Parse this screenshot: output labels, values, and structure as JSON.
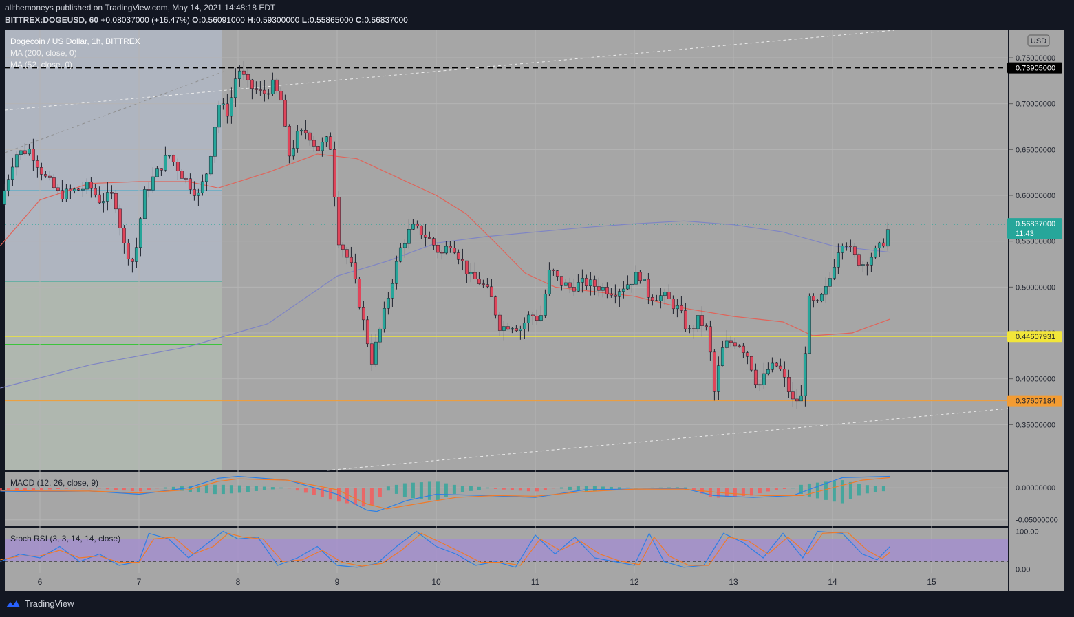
{
  "header": {
    "publisher": "allthemoneys published on TradingView.com, May 14, 2021 14:48:18 EDT",
    "symbol": "BITTREX:DOGEUSD, 60",
    "change": "+0.08037000 (+16.47%)",
    "o_label": "O:",
    "o_value": "0.56091000",
    "h_label": "H:",
    "h_value": "0.59300000",
    "l_label": "L:",
    "l_value": "0.55865000",
    "c_label": "C:",
    "c_value": "0.56837000"
  },
  "legend": {
    "title": "Dogecoin / US Dollar, 1h, BITTREX",
    "ma200": "MA (200, close, 0)",
    "ma52": "MA (52, close, 0)",
    "macd": "MACD (12, 26, close, 9)",
    "stoch": "Stoch RSI (3, 3, 14, 14, close)"
  },
  "currency_badge": "USD",
  "countdown": "11:43",
  "footer_brand": "TradingView",
  "colors": {
    "background": "#131722",
    "pane": "#a6a6a6",
    "up": "#26a69a",
    "down": "#e0455a",
    "ma200": "#7e84c4",
    "ma52": "#e0645a",
    "resistance_high": "#000000",
    "support_yellow": "#f2e63a",
    "support_orange": "#f39c33",
    "macd_line": "#2b7fe6",
    "signal_line": "#f07a28",
    "stoch_band": "#a48fd0"
  },
  "chart_data": {
    "type": "candlestick",
    "symbol": "BITTREX:DOGEUSD",
    "timeframe": "1h",
    "x_ticks": [
      "6",
      "7",
      "8",
      "9",
      "10",
      "11",
      "12",
      "13",
      "14",
      "15"
    ],
    "y_ticks": [
      "0.75000000",
      "0.70000000",
      "0.65000000",
      "0.60000000",
      "0.55000000",
      "0.50000000",
      "0.45000000",
      "0.40000000",
      "0.35000000"
    ],
    "ylim": [
      0.3,
      0.78
    ],
    "levels": [
      {
        "value": 0.73905,
        "label": "0.73905000",
        "color": "#000000",
        "style": "dashed"
      },
      {
        "value": 0.44607931,
        "label": "0.44607931",
        "color": "#f2e63a",
        "style": "solid"
      },
      {
        "value": 0.37607184,
        "label": "0.37607184",
        "color": "#f39c33",
        "style": "solid"
      },
      {
        "value": 0.56837,
        "label": "0.56837000",
        "color": "#26a69a",
        "style": "dotted"
      }
    ],
    "price_path": [
      [
        5.6,
        0.59
      ],
      [
        5.75,
        0.645
      ],
      [
        5.9,
        0.65
      ],
      [
        6.05,
        0.62
      ],
      [
        6.2,
        0.6
      ],
      [
        6.35,
        0.605
      ],
      [
        6.5,
        0.61
      ],
      [
        6.6,
        0.595
      ],
      [
        6.75,
        0.6
      ],
      [
        6.85,
        0.545
      ],
      [
        6.95,
        0.525
      ],
      [
        7.05,
        0.6
      ],
      [
        7.15,
        0.62
      ],
      [
        7.3,
        0.645
      ],
      [
        7.45,
        0.62
      ],
      [
        7.6,
        0.6
      ],
      [
        7.7,
        0.63
      ],
      [
        7.8,
        0.7
      ],
      [
        7.9,
        0.69
      ],
      [
        8.0,
        0.74
      ],
      [
        8.1,
        0.72
      ],
      [
        8.25,
        0.71
      ],
      [
        8.35,
        0.72
      ],
      [
        8.45,
        0.7
      ],
      [
        8.5,
        0.64
      ],
      [
        8.6,
        0.665
      ],
      [
        8.7,
        0.67
      ],
      [
        8.8,
        0.65
      ],
      [
        8.9,
        0.66
      ],
      [
        8.95,
        0.65
      ],
      [
        9.0,
        0.555
      ],
      [
        9.05,
        0.545
      ],
      [
        9.15,
        0.52
      ],
      [
        9.25,
        0.47
      ],
      [
        9.35,
        0.42
      ],
      [
        9.45,
        0.46
      ],
      [
        9.55,
        0.505
      ],
      [
        9.65,
        0.545
      ],
      [
        9.75,
        0.565
      ],
      [
        9.85,
        0.56
      ],
      [
        9.95,
        0.55
      ],
      [
        10.05,
        0.535
      ],
      [
        10.15,
        0.55
      ],
      [
        10.25,
        0.53
      ],
      [
        10.35,
        0.51
      ],
      [
        10.45,
        0.505
      ],
      [
        10.55,
        0.49
      ],
      [
        10.65,
        0.455
      ],
      [
        10.75,
        0.46
      ],
      [
        10.85,
        0.455
      ],
      [
        10.95,
        0.47
      ],
      [
        11.05,
        0.465
      ],
      [
        11.15,
        0.52
      ],
      [
        11.25,
        0.505
      ],
      [
        11.35,
        0.5
      ],
      [
        11.5,
        0.505
      ],
      [
        11.65,
        0.5
      ],
      [
        11.8,
        0.495
      ],
      [
        11.95,
        0.505
      ],
      [
        12.05,
        0.515
      ],
      [
        12.15,
        0.49
      ],
      [
        12.3,
        0.49
      ],
      [
        12.45,
        0.475
      ],
      [
        12.55,
        0.45
      ],
      [
        12.65,
        0.465
      ],
      [
        12.75,
        0.45
      ],
      [
        12.8,
        0.38
      ],
      [
        12.88,
        0.43
      ],
      [
        12.95,
        0.44
      ],
      [
        13.05,
        0.44
      ],
      [
        13.15,
        0.425
      ],
      [
        13.25,
        0.39
      ],
      [
        13.35,
        0.41
      ],
      [
        13.45,
        0.415
      ],
      [
        13.55,
        0.39
      ],
      [
        13.6,
        0.375
      ],
      [
        13.7,
        0.38
      ],
      [
        13.75,
        0.485
      ],
      [
        13.85,
        0.48
      ],
      [
        13.95,
        0.5
      ],
      [
        14.05,
        0.54
      ],
      [
        14.12,
        0.555
      ],
      [
        14.2,
        0.535
      ],
      [
        14.3,
        0.525
      ],
      [
        14.4,
        0.535
      ],
      [
        14.5,
        0.545
      ],
      [
        14.58,
        0.568
      ]
    ],
    "ma200": [
      [
        5.6,
        0.39
      ],
      [
        6.5,
        0.415
      ],
      [
        7.5,
        0.435
      ],
      [
        8.3,
        0.46
      ],
      [
        9.0,
        0.512
      ],
      [
        9.5,
        0.528
      ],
      [
        10.0,
        0.548
      ],
      [
        10.5,
        0.555
      ],
      [
        11.0,
        0.56
      ],
      [
        11.5,
        0.565
      ],
      [
        12.0,
        0.569
      ],
      [
        12.5,
        0.572
      ],
      [
        13.0,
        0.568
      ],
      [
        13.5,
        0.56
      ],
      [
        14.0,
        0.545
      ],
      [
        14.58,
        0.538
      ]
    ],
    "ma52": [
      [
        5.6,
        0.545
      ],
      [
        6.0,
        0.595
      ],
      [
        6.5,
        0.613
      ],
      [
        7.0,
        0.615
      ],
      [
        7.5,
        0.615
      ],
      [
        7.8,
        0.608
      ],
      [
        8.3,
        0.625
      ],
      [
        8.8,
        0.645
      ],
      [
        9.2,
        0.64
      ],
      [
        9.6,
        0.62
      ],
      [
        10.0,
        0.6
      ],
      [
        10.3,
        0.58
      ],
      [
        10.6,
        0.548
      ],
      [
        10.9,
        0.515
      ],
      [
        11.2,
        0.5
      ],
      [
        11.6,
        0.495
      ],
      [
        12.0,
        0.49
      ],
      [
        12.5,
        0.477
      ],
      [
        13.0,
        0.468
      ],
      [
        13.5,
        0.462
      ],
      [
        13.8,
        0.447
      ],
      [
        14.2,
        0.45
      ],
      [
        14.58,
        0.465
      ]
    ],
    "macd": {
      "y_ticks": [
        "0.00000000",
        "-0.05000000"
      ],
      "ylim": [
        -0.06,
        0.025
      ],
      "macd_line": [
        [
          5.6,
          -0.005
        ],
        [
          6.0,
          -0.006
        ],
        [
          6.5,
          -0.005
        ],
        [
          7.0,
          -0.01
        ],
        [
          7.5,
          0.0
        ],
        [
          7.8,
          0.015
        ],
        [
          8.0,
          0.018
        ],
        [
          8.5,
          0.012
        ],
        [
          9.0,
          -0.01
        ],
        [
          9.3,
          -0.035
        ],
        [
          9.4,
          -0.037
        ],
        [
          9.7,
          -0.02
        ],
        [
          10.0,
          -0.01
        ],
        [
          10.5,
          -0.012
        ],
        [
          11.0,
          -0.015
        ],
        [
          11.5,
          -0.003
        ],
        [
          12.0,
          -0.002
        ],
        [
          12.5,
          -0.001
        ],
        [
          12.8,
          -0.012
        ],
        [
          13.2,
          -0.015
        ],
        [
          13.6,
          -0.012
        ],
        [
          13.9,
          0.005
        ],
        [
          14.1,
          0.016
        ],
        [
          14.58,
          0.018
        ]
      ],
      "signal_line": [
        [
          5.6,
          -0.004
        ],
        [
          6.0,
          -0.005
        ],
        [
          6.5,
          -0.005
        ],
        [
          7.0,
          -0.008
        ],
        [
          7.5,
          -0.003
        ],
        [
          7.8,
          0.01
        ],
        [
          8.0,
          0.014
        ],
        [
          8.5,
          0.012
        ],
        [
          9.0,
          -0.003
        ],
        [
          9.3,
          -0.025
        ],
        [
          9.5,
          -0.033
        ],
        [
          9.8,
          -0.025
        ],
        [
          10.2,
          -0.015
        ],
        [
          10.6,
          -0.012
        ],
        [
          11.0,
          -0.013
        ],
        [
          11.5,
          -0.006
        ],
        [
          12.0,
          -0.002
        ],
        [
          12.5,
          -0.002
        ],
        [
          12.9,
          -0.008
        ],
        [
          13.3,
          -0.012
        ],
        [
          13.7,
          -0.012
        ],
        [
          14.0,
          0.0
        ],
        [
          14.3,
          0.012
        ],
        [
          14.58,
          0.016
        ]
      ]
    },
    "stoch_rsi": {
      "y_ticks": [
        "100.00",
        "0.00"
      ],
      "ylim": [
        -10,
        110
      ],
      "bands": [
        80,
        20
      ],
      "k_line": [
        [
          5.6,
          20
        ],
        [
          5.8,
          40
        ],
        [
          6.0,
          30
        ],
        [
          6.2,
          60
        ],
        [
          6.4,
          20
        ],
        [
          6.6,
          40
        ],
        [
          6.8,
          10
        ],
        [
          7.0,
          20
        ],
        [
          7.1,
          95
        ],
        [
          7.3,
          80
        ],
        [
          7.5,
          30
        ],
        [
          7.7,
          70
        ],
        [
          7.85,
          100
        ],
        [
          8.0,
          80
        ],
        [
          8.2,
          85
        ],
        [
          8.4,
          10
        ],
        [
          8.6,
          30
        ],
        [
          8.8,
          60
        ],
        [
          9.0,
          10
        ],
        [
          9.2,
          5
        ],
        [
          9.4,
          15
        ],
        [
          9.6,
          60
        ],
        [
          9.8,
          100
        ],
        [
          10.0,
          60
        ],
        [
          10.2,
          40
        ],
        [
          10.4,
          10
        ],
        [
          10.6,
          20
        ],
        [
          10.8,
          5
        ],
        [
          11.0,
          90
        ],
        [
          11.2,
          40
        ],
        [
          11.4,
          85
        ],
        [
          11.6,
          30
        ],
        [
          11.8,
          20
        ],
        [
          12.0,
          10
        ],
        [
          12.15,
          95
        ],
        [
          12.3,
          20
        ],
        [
          12.5,
          5
        ],
        [
          12.7,
          10
        ],
        [
          12.9,
          95
        ],
        [
          13.1,
          70
        ],
        [
          13.3,
          30
        ],
        [
          13.5,
          95
        ],
        [
          13.7,
          30
        ],
        [
          13.85,
          100
        ],
        [
          14.1,
          95
        ],
        [
          14.3,
          40
        ],
        [
          14.45,
          25
        ],
        [
          14.58,
          60
        ]
      ],
      "d_line": [
        [
          5.6,
          25
        ],
        [
          5.8,
          35
        ],
        [
          6.0,
          35
        ],
        [
          6.2,
          50
        ],
        [
          6.4,
          30
        ],
        [
          6.6,
          35
        ],
        [
          6.8,
          18
        ],
        [
          7.0,
          18
        ],
        [
          7.15,
          80
        ],
        [
          7.35,
          85
        ],
        [
          7.55,
          40
        ],
        [
          7.75,
          60
        ],
        [
          7.9,
          95
        ],
        [
          8.05,
          85
        ],
        [
          8.25,
          80
        ],
        [
          8.45,
          20
        ],
        [
          8.65,
          25
        ],
        [
          8.85,
          50
        ],
        [
          9.05,
          18
        ],
        [
          9.25,
          8
        ],
        [
          9.45,
          15
        ],
        [
          9.65,
          50
        ],
        [
          9.85,
          95
        ],
        [
          10.05,
          70
        ],
        [
          10.25,
          45
        ],
        [
          10.45,
          18
        ],
        [
          10.65,
          18
        ],
        [
          10.85,
          10
        ],
        [
          11.05,
          80
        ],
        [
          11.25,
          50
        ],
        [
          11.45,
          75
        ],
        [
          11.65,
          40
        ],
        [
          11.85,
          22
        ],
        [
          12.05,
          12
        ],
        [
          12.2,
          85
        ],
        [
          12.35,
          35
        ],
        [
          12.55,
          10
        ],
        [
          12.75,
          10
        ],
        [
          12.95,
          85
        ],
        [
          13.15,
          75
        ],
        [
          13.35,
          40
        ],
        [
          13.55,
          85
        ],
        [
          13.75,
          40
        ],
        [
          13.9,
          95
        ],
        [
          14.15,
          98
        ],
        [
          14.35,
          50
        ],
        [
          14.5,
          28
        ],
        [
          14.58,
          45
        ]
      ]
    }
  }
}
